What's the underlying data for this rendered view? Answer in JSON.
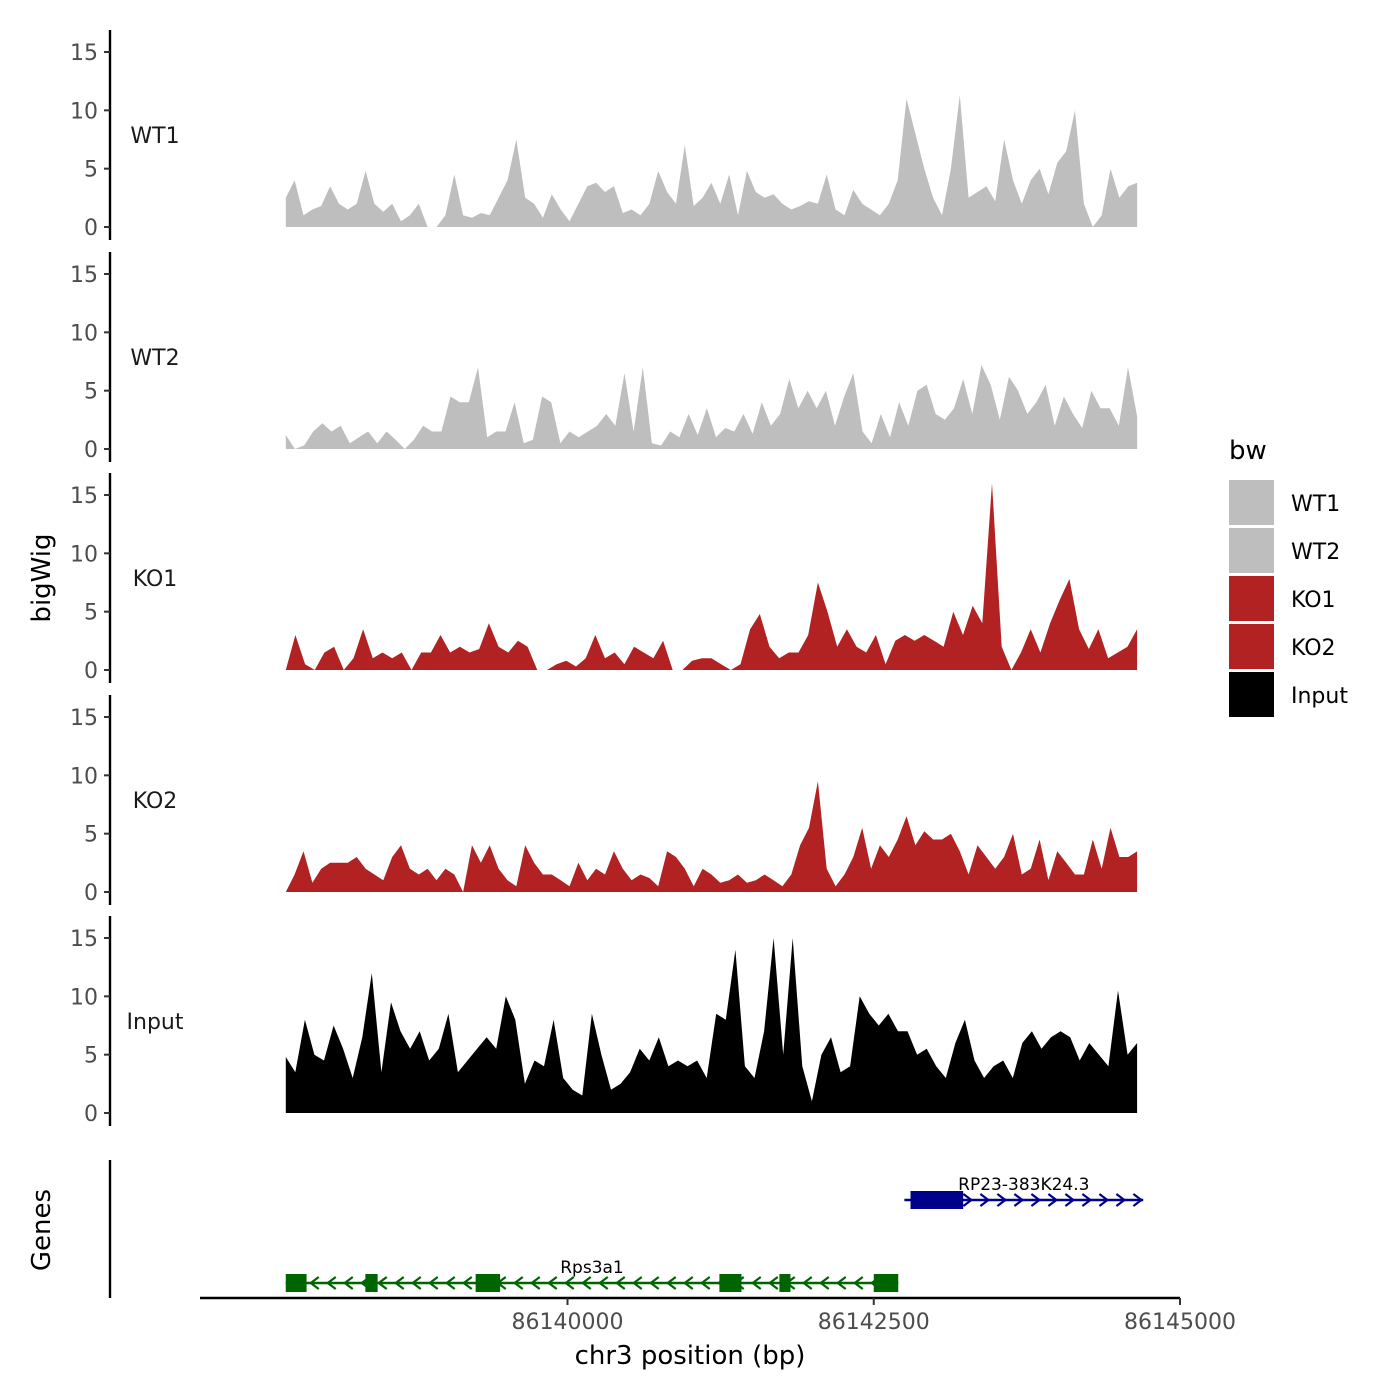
{
  "chart_data": {
    "type": "area",
    "ylabel": "bigWig",
    "genes_label": "Genes",
    "xlabel": "chr3 position (bp)",
    "xlim": [
      86137000,
      86145000
    ],
    "data_range": [
      86137700,
      86144650
    ],
    "x_ticks": [
      86140000,
      86142500,
      86145000
    ],
    "x_tick_labels": [
      "86140000",
      "86142500",
      "86145000"
    ],
    "ylim": [
      0,
      16
    ],
    "y_ticks": [
      0,
      5,
      10,
      15
    ],
    "y_tick_labels": [
      "0",
      "5",
      "10",
      "15"
    ],
    "legend": {
      "title": "bw",
      "position": "right",
      "entries": [
        {
          "label": "WT1",
          "color": "#bebebe"
        },
        {
          "label": "WT2",
          "color": "#bebebe"
        },
        {
          "label": "KO1",
          "color": "#b22222"
        },
        {
          "label": "KO2",
          "color": "#b22222"
        },
        {
          "label": "Input",
          "color": "#000000"
        }
      ]
    },
    "series": [
      {
        "name": "WT1",
        "color": "#bebebe",
        "values": [
          2.5,
          4,
          1,
          1.5,
          1.8,
          3.5,
          2,
          1.5,
          2,
          4.8,
          2,
          1.3,
          2,
          0.5,
          1,
          2,
          0,
          0,
          1,
          4.5,
          1,
          0.8,
          1.2,
          1,
          2.5,
          4,
          7.5,
          2.5,
          2,
          0.8,
          2.8,
          1.5,
          0.5,
          2,
          3.5,
          3.8,
          3,
          3.5,
          1.2,
          1.5,
          1,
          2,
          4.8,
          3,
          2,
          7,
          1.8,
          2.5,
          3.8,
          2,
          4.5,
          1,
          4.8,
          3,
          2.5,
          2.8,
          2,
          1.5,
          1.8,
          2.2,
          2,
          4.5,
          1.5,
          1,
          3.2,
          2,
          1.5,
          1,
          2,
          4,
          11,
          8,
          5,
          2.5,
          1,
          5,
          11.3,
          2.5,
          3,
          3.5,
          2.2,
          7.5,
          4,
          2,
          4,
          5,
          2.8,
          5.5,
          6.5,
          10,
          2,
          0,
          1,
          5,
          2.5,
          3.5,
          3.8
        ]
      },
      {
        "name": "WT2",
        "color": "#bebebe",
        "values": [
          1.2,
          0,
          0.3,
          1.5,
          2.2,
          1.5,
          2,
          0.5,
          1,
          1.5,
          0.5,
          1.5,
          0.8,
          0,
          0.8,
          2,
          1.5,
          1.5,
          4.5,
          4,
          4,
          7,
          1,
          1.5,
          1.5,
          4,
          0.5,
          0.8,
          4.5,
          4,
          0.5,
          1.5,
          1,
          1.5,
          2,
          3,
          2,
          6.5,
          1.5,
          7,
          0.5,
          0.3,
          1.5,
          1,
          3,
          1.2,
          3.5,
          1,
          1.8,
          1.5,
          3,
          1.3,
          4,
          2,
          3,
          6,
          3.5,
          5,
          3.5,
          5,
          2,
          4.5,
          6.5,
          1.5,
          0.5,
          3,
          1,
          4,
          2,
          5,
          5.5,
          3,
          2.5,
          3.5,
          6,
          3,
          7.2,
          5.5,
          2.5,
          6.2,
          5,
          3,
          4,
          5.5,
          2,
          4.5,
          3,
          1.8,
          5,
          3.5,
          3.5,
          2,
          7,
          2.8
        ]
      },
      {
        "name": "KO1",
        "color": "#b22222",
        "values": [
          0,
          3,
          0.5,
          0,
          1.5,
          2,
          0,
          1,
          3.5,
          1,
          1.5,
          1,
          1.5,
          0,
          1.5,
          1.5,
          3,
          1.5,
          2,
          1.5,
          1.8,
          4,
          2,
          1.5,
          2.5,
          2,
          0,
          0,
          0.5,
          0.8,
          0.3,
          1,
          3,
          1,
          1.5,
          0.5,
          2,
          1.5,
          1,
          2.5,
          0,
          0,
          0.8,
          1,
          1,
          0.5,
          0,
          0.5,
          3.5,
          4.8,
          2,
          1,
          1.5,
          1.5,
          3,
          7.5,
          5,
          2,
          3.5,
          2,
          1.5,
          3,
          0.5,
          2.5,
          3,
          2.5,
          3,
          2.5,
          2,
          5,
          3,
          5.5,
          4,
          16,
          2,
          0,
          1.5,
          3.5,
          1.5,
          4,
          6,
          7.8,
          3.5,
          1.8,
          3.5,
          1,
          1.5,
          2,
          3.5
        ]
      },
      {
        "name": "KO2",
        "color": "#b22222",
        "values": [
          0,
          1.5,
          3.5,
          0.8,
          2,
          2.5,
          2.5,
          2.5,
          3,
          2,
          1.5,
          1,
          3,
          4,
          2,
          1.5,
          2,
          1,
          2,
          1.5,
          0,
          4,
          2.5,
          4,
          2,
          1,
          0.5,
          4,
          2.5,
          1.5,
          1.5,
          1,
          0.5,
          2.5,
          1,
          2,
          1.5,
          3.5,
          2,
          1,
          1.5,
          1.2,
          0.5,
          3.5,
          3,
          2,
          0.5,
          2,
          1.5,
          0.8,
          1,
          1.5,
          0.8,
          1,
          1.5,
          1,
          0.5,
          1.5,
          4,
          5.5,
          9.5,
          2,
          0.5,
          1.5,
          3,
          5.5,
          2,
          4,
          3,
          4.5,
          6.5,
          4,
          5.2,
          4.5,
          4.5,
          5,
          3.5,
          1.5,
          4,
          3,
          2,
          3,
          5,
          1.5,
          2,
          4.5,
          1,
          3.5,
          2.5,
          1.5,
          1.5,
          4.5,
          2,
          5.5,
          3,
          3,
          3.5
        ]
      },
      {
        "name": "Input",
        "color": "#000000",
        "values": [
          4.8,
          3.5,
          8,
          5,
          4.5,
          7.5,
          5.5,
          3,
          6.5,
          12,
          3.5,
          9.5,
          7,
          5.5,
          7,
          4.5,
          5.5,
          8.5,
          3.5,
          4.5,
          5.5,
          6.5,
          5.5,
          10,
          8,
          2.5,
          4.5,
          4,
          8,
          3,
          2,
          1.5,
          8.5,
          5,
          2,
          2.5,
          3.5,
          5.5,
          4.5,
          6.5,
          4,
          4.5,
          4,
          4.5,
          3,
          8.5,
          8,
          14,
          4,
          3,
          7,
          15,
          5,
          15,
          4,
          1,
          5,
          6.5,
          3.5,
          4,
          10,
          8.5,
          7.5,
          8.5,
          7,
          7,
          5,
          5.5,
          4,
          3,
          6,
          8,
          4.5,
          3,
          4,
          4.5,
          3,
          6,
          7,
          5.5,
          6.5,
          7,
          6.5,
          4.5,
          6,
          5,
          4,
          10.5,
          5,
          6
        ]
      }
    ],
    "genes": [
      {
        "name": "Rps3a1",
        "strand": "-",
        "color": "#006400",
        "start": 86137700,
        "end": 86142700,
        "exons": [
          [
            86137700,
            86137870
          ],
          [
            86138350,
            86138450
          ],
          [
            86139250,
            86139450
          ],
          [
            86141240,
            86141420
          ],
          [
            86141730,
            86141820
          ],
          [
            86142500,
            86142700
          ]
        ]
      },
      {
        "name": "RP23-383K24.3",
        "strand": "+",
        "color": "#00008b",
        "start": 86142750,
        "end": 86144700,
        "exons": [
          [
            86142800,
            86143230
          ]
        ]
      }
    ]
  }
}
